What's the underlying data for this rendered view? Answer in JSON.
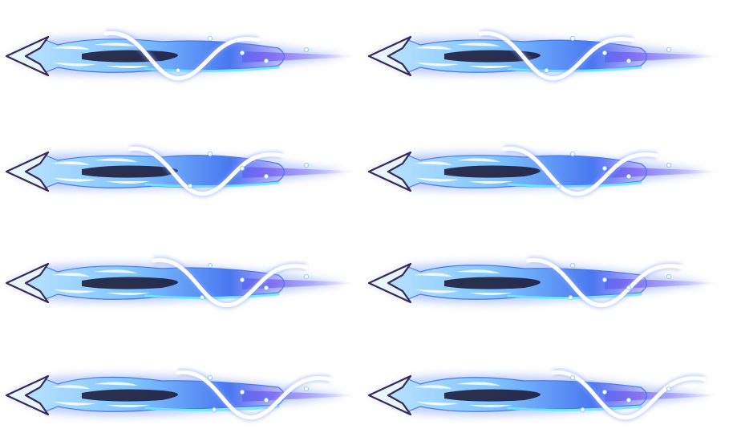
{
  "sprite_sheet": {
    "columns": 2,
    "rows": 4,
    "frames": [
      {
        "name": "frame-1",
        "sprite": "ice-spear-projectile",
        "ribbon_phase": 0.0
      },
      {
        "name": "frame-2",
        "sprite": "ice-spear-projectile",
        "ribbon_phase": 0.125
      },
      {
        "name": "frame-3",
        "sprite": "ice-spear-projectile",
        "ribbon_phase": 0.25
      },
      {
        "name": "frame-4",
        "sprite": "ice-spear-projectile",
        "ribbon_phase": 0.375
      },
      {
        "name": "frame-5",
        "sprite": "ice-spear-projectile",
        "ribbon_phase": 0.5
      },
      {
        "name": "frame-6",
        "sprite": "ice-spear-projectile",
        "ribbon_phase": 0.625
      },
      {
        "name": "frame-7",
        "sprite": "ice-spear-projectile",
        "ribbon_phase": 0.75
      },
      {
        "name": "frame-8",
        "sprite": "ice-spear-projectile",
        "ribbon_phase": 0.875
      }
    ],
    "colors": {
      "background": "#ffffff",
      "outline": "#3a2a5a",
      "ice_light": "#bfe6ff",
      "ice_mid": "#7fc4ff",
      "ice_deep": "#4a78f0",
      "core_dark": "#1e1e3c",
      "trail_violet": "#7a5cf0",
      "glow": "#8aa8ff",
      "ribbon": "#ffffff",
      "highlight": "#e8f6ff"
    }
  }
}
